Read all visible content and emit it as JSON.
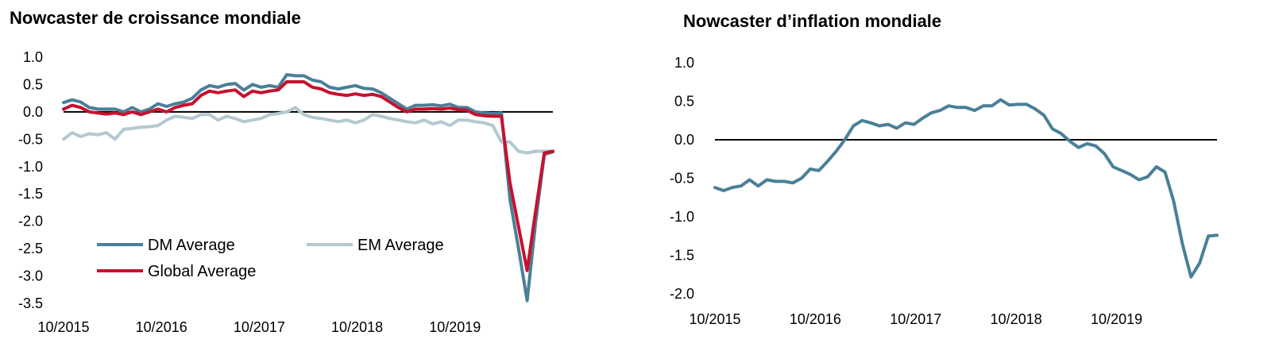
{
  "chart_data": [
    {
      "type": "line",
      "title": "Nowcaster de croissance mondiale",
      "ylim": [
        -3.5,
        1.0
      ],
      "yticks": [
        "1.0",
        "0.5",
        "0.0",
        "-0.5",
        "-1.0",
        "-1.5",
        "-2.0",
        "-2.5",
        "-3.0",
        "-3.5"
      ],
      "xtick_labels": [
        "10/2015",
        "10/2016",
        "10/2017",
        "10/2018",
        "10/2019"
      ],
      "x_start": "10/2015",
      "x_end": "10/2020",
      "legend": "lower-left",
      "zero_line": true,
      "series": [
        {
          "name": "DM Average",
          "color": "#4a7f98",
          "values": [
            0.17,
            0.22,
            0.18,
            0.08,
            0.05,
            0.05,
            0.05,
            0.0,
            0.08,
            0.0,
            0.05,
            0.15,
            0.1,
            0.15,
            0.18,
            0.25,
            0.4,
            0.48,
            0.45,
            0.5,
            0.52,
            0.4,
            0.5,
            0.45,
            0.48,
            0.45,
            0.68,
            0.66,
            0.66,
            0.58,
            0.55,
            0.45,
            0.42,
            0.45,
            0.48,
            0.43,
            0.42,
            0.35,
            0.25,
            0.15,
            0.05,
            0.12,
            0.12,
            0.13,
            0.11,
            0.14,
            0.08,
            0.08,
            0.0,
            -0.02,
            -0.03,
            -0.02,
            -1.6,
            -2.5,
            -3.45,
            -2.0,
            -0.78,
            -0.73
          ]
        },
        {
          "name": "EM Average",
          "color": "#b4c8d0",
          "values": [
            -0.5,
            -0.38,
            -0.45,
            -0.4,
            -0.42,
            -0.38,
            -0.5,
            -0.32,
            -0.3,
            -0.28,
            -0.27,
            -0.25,
            -0.15,
            -0.08,
            -0.1,
            -0.12,
            -0.05,
            -0.05,
            -0.15,
            -0.08,
            -0.12,
            -0.18,
            -0.15,
            -0.12,
            -0.05,
            -0.03,
            0.0,
            0.08,
            -0.05,
            -0.1,
            -0.12,
            -0.15,
            -0.18,
            -0.15,
            -0.2,
            -0.15,
            -0.05,
            -0.08,
            -0.12,
            -0.15,
            -0.18,
            -0.2,
            -0.15,
            -0.22,
            -0.18,
            -0.25,
            -0.15,
            -0.15,
            -0.18,
            -0.2,
            -0.25,
            -0.55,
            -0.55,
            -0.72,
            -0.75,
            -0.72,
            -0.72,
            -0.72
          ]
        },
        {
          "name": "Global Average",
          "color": "#c8102e",
          "values": [
            0.05,
            0.12,
            0.08,
            0.0,
            -0.02,
            -0.04,
            -0.02,
            -0.05,
            0.0,
            -0.05,
            0.0,
            0.05,
            0.0,
            0.08,
            0.12,
            0.15,
            0.3,
            0.38,
            0.35,
            0.38,
            0.4,
            0.28,
            0.38,
            0.35,
            0.38,
            0.4,
            0.55,
            0.55,
            0.55,
            0.45,
            0.42,
            0.35,
            0.32,
            0.3,
            0.33,
            0.3,
            0.32,
            0.28,
            0.18,
            0.08,
            0.0,
            0.05,
            0.05,
            0.06,
            0.05,
            0.07,
            0.04,
            0.03,
            -0.05,
            -0.07,
            -0.08,
            -0.08,
            -1.3,
            -2.1,
            -2.9,
            -1.8,
            -0.75,
            -0.72
          ]
        }
      ]
    },
    {
      "type": "line",
      "title": "Nowcaster d’inflation mondiale",
      "ylim": [
        -2.0,
        1.0
      ],
      "yticks": [
        "1.0",
        "0.5",
        "0.0",
        "-0.5",
        "-1.0",
        "-1.5",
        "-2.0"
      ],
      "xtick_labels": [
        "10/2015",
        "10/2016",
        "10/2017",
        "10/2018",
        "10/2019"
      ],
      "x_start": "10/2015",
      "x_end": "10/2020",
      "zero_line": true,
      "series": [
        {
          "color": "#4a7f98",
          "values": [
            -0.62,
            -0.66,
            -0.62,
            -0.6,
            -0.52,
            -0.6,
            -0.52,
            -0.54,
            -0.54,
            -0.56,
            -0.5,
            -0.38,
            -0.4,
            -0.28,
            -0.15,
            0.0,
            0.18,
            0.25,
            0.22,
            0.18,
            0.2,
            0.15,
            0.22,
            0.2,
            0.28,
            0.35,
            0.38,
            0.44,
            0.42,
            0.42,
            0.38,
            0.44,
            0.44,
            0.52,
            0.45,
            0.46,
            0.46,
            0.4,
            0.32,
            0.14,
            0.08,
            -0.02,
            -0.1,
            -0.05,
            -0.08,
            -0.18,
            -0.35,
            -0.4,
            -0.45,
            -0.52,
            -0.48,
            -0.35,
            -0.42,
            -0.8,
            -1.35,
            -1.78,
            -1.6,
            -1.25,
            -1.24
          ]
        }
      ]
    }
  ]
}
